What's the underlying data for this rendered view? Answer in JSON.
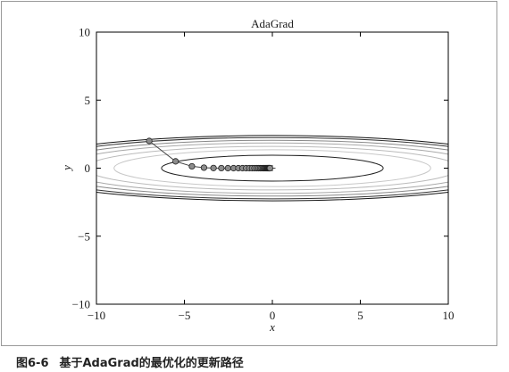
{
  "caption": {
    "label": "图6-6",
    "text": "基于AdaGrad的最优化的更新路径"
  },
  "chart_data": {
    "type": "line",
    "title": "AdaGrad",
    "xlabel": "x",
    "ylabel": "y",
    "xlim": [
      -10,
      10
    ],
    "ylim": [
      -10,
      10
    ],
    "xticks": [
      -10,
      -5,
      0,
      5,
      10
    ],
    "xtick_labels": [
      "−10",
      "−5",
      "0",
      "5",
      "10"
    ],
    "yticks": [
      -10,
      -5,
      0,
      5,
      10
    ],
    "ytick_labels": [
      "−10",
      "−5",
      "0",
      "5",
      "10"
    ],
    "grid": false,
    "series": [
      {
        "marker": "circle",
        "x": [
          -7,
          -5.5,
          -4.573,
          -3.888,
          -3.345,
          -2.899,
          -2.524,
          -2.206,
          -1.932,
          -1.695,
          -1.489,
          -1.31,
          -1.153,
          -1.015,
          -0.895,
          -0.788,
          -0.695,
          -0.613,
          -0.54,
          -0.477,
          -0.42,
          -0.371,
          -0.327,
          -0.289,
          -0.255,
          -0.225,
          -0.198,
          -0.175,
          -0.154,
          -0.136
        ],
        "y": [
          2,
          0.5,
          0.136,
          0.037,
          0.01,
          0.003,
          0.001,
          0,
          0,
          0,
          0,
          0,
          0,
          0,
          0,
          0,
          0,
          0,
          0,
          0,
          0,
          0,
          0,
          0,
          0,
          0,
          0,
          0,
          0,
          0
        ]
      }
    ],
    "origin_marker": [
      0,
      0
    ],
    "contours": [
      {
        "rx": 6.3,
        "ry": 0.95,
        "color": "#222222"
      },
      {
        "rx": 9.0,
        "ry": 1.35,
        "color": "#c8c8c8"
      },
      {
        "rx": 10.6,
        "ry": 1.6,
        "color": "#bbbbbb"
      },
      {
        "rx": 12.0,
        "ry": 1.85,
        "color": "#a8a8a8"
      },
      {
        "rx": 13.2,
        "ry": 2.05,
        "color": "#888888"
      },
      {
        "rx": 14.2,
        "ry": 2.25,
        "color": "#333333"
      },
      {
        "rx": 14.8,
        "ry": 2.4,
        "color": "#111111"
      }
    ],
    "colors": {
      "path_line": "#444444",
      "marker_fill": "#8c8c8c",
      "marker_edge": "#222222",
      "axes": "#000000"
    }
  }
}
